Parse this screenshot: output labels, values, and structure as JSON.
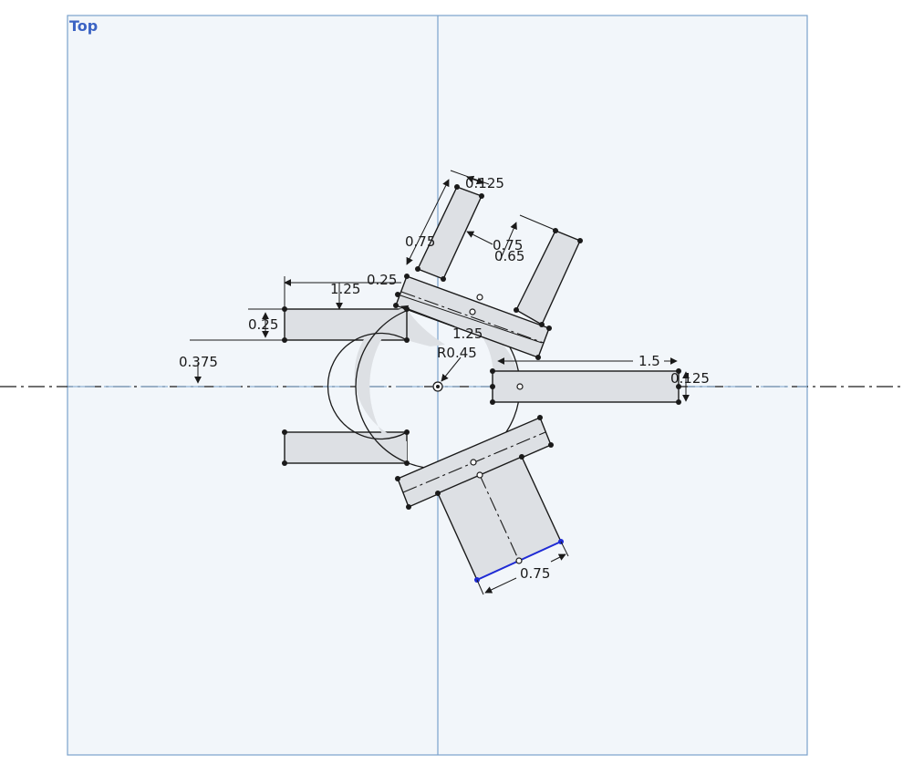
{
  "view": {
    "plane_label": "Top"
  },
  "colors": {
    "plane_fill": "#f2f6fa",
    "plane_border": "#7aa2cc",
    "region_fill": "#dde0e4",
    "sketch_line": "#1a1a1a",
    "selected_line": "#1f2bd6",
    "axis": "#3a5a80"
  },
  "dimensions": {
    "d_0125_top": "0.125",
    "d_075_left": "0.75",
    "d_075_mid": "0.75",
    "d_065": "0.65",
    "d_1_25_left": "1.25",
    "d_0_25_small": "0.25",
    "d_0_25_arm": "0.25",
    "d_0375": "0.375",
    "d_1_25_diag": "1.25",
    "d_r045": "R0.45",
    "d_1_5": "1.5",
    "d_0125_right": "0.125",
    "d_075_bottom": "0.75"
  }
}
